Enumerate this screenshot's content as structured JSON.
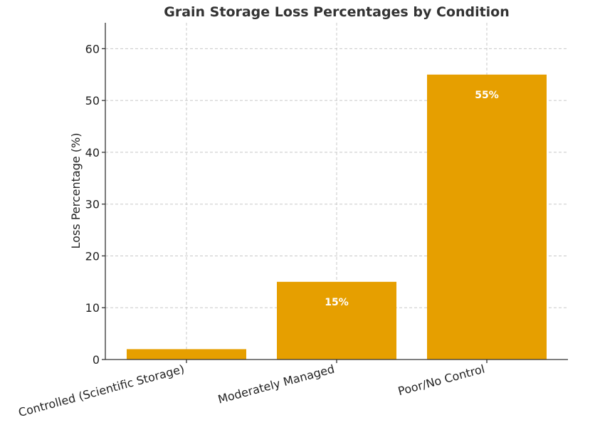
{
  "chart_data": {
    "type": "bar",
    "title": "Grain Storage Loss Percentages by Condition",
    "xlabel": "",
    "ylabel": "Loss Percentage (%)",
    "categories": [
      "Controlled (Scientific Storage)",
      "Moderately Managed",
      "Poor/No Control"
    ],
    "values": [
      2,
      15,
      55
    ],
    "data_labels": [
      "",
      "15%",
      "55%"
    ],
    "ylim": [
      0,
      65
    ],
    "yticks": [
      0,
      10,
      20,
      30,
      40,
      50,
      60
    ],
    "grid": true,
    "bar_color": "#E69F00"
  }
}
